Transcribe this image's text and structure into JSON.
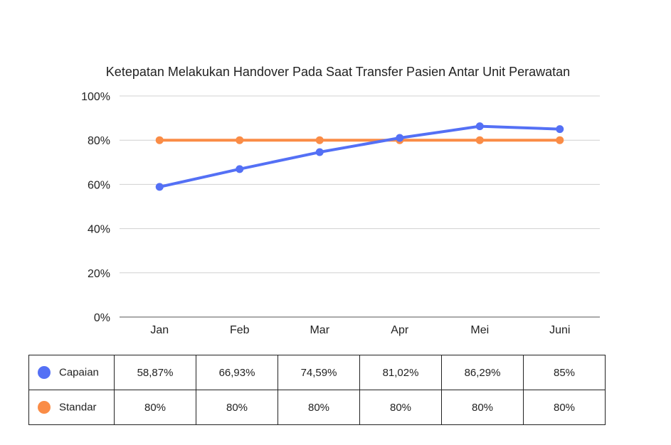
{
  "chart_data": {
    "type": "line",
    "title": "Ketepatan Melakukan Handover Pada Saat Transfer Pasien Antar Unit Perawatan",
    "categories": [
      "Jan",
      "Feb",
      "Mar",
      "Apr",
      "Mei",
      "Juni"
    ],
    "ylim": [
      0,
      100
    ],
    "yticks": [
      "0%",
      "20%",
      "40%",
      "60%",
      "80%",
      "100%"
    ],
    "grid": true,
    "legend": "table-below",
    "series": [
      {
        "name": "Capaian",
        "color": "#5470f5",
        "values": [
          58.87,
          66.93,
          74.59,
          81.02,
          86.29,
          85
        ],
        "labels": [
          "58,87%",
          "66,93%",
          "74,59%",
          "81,02%",
          "86,29%",
          "85%"
        ]
      },
      {
        "name": "Standar",
        "color": "#fa8c46",
        "values": [
          80,
          80,
          80,
          80,
          80,
          80
        ],
        "labels": [
          "80%",
          "80%",
          "80%",
          "80%",
          "80%",
          "80%"
        ]
      }
    ]
  }
}
